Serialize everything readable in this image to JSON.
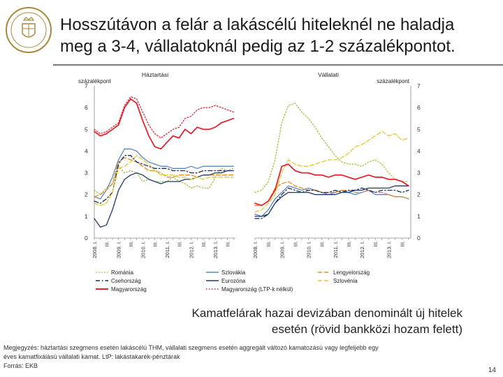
{
  "title_line1": "Hosszútávon a felár a lakáscélú hiteleknél ne haladja",
  "title_line2": "meg a 3-4, vállalatoknál pedig az 1-2 százalékpontot.",
  "caption_line1": "Kamatfelárak hazai devizában denominált új hitelek",
  "caption_line2": "esetén (rövid bankközi hozam felett)",
  "notes": {
    "line1": "Megjegyzés: háztartási szegmens esetén lakáscélú THM, vállalati szegmens esetén aggregált változó kamatozású vagy legfeljebb egy",
    "line2": "éves kamatfixálású vállalati kamat. LtP: lakástakarék-pénztárak",
    "line3": "Forrás: EKB"
  },
  "page_number": "14",
  "colors": {
    "Románia": "#a8bf3a",
    "Szlovákia": "#5b86c2",
    "Lengyelország": "#e58a2b",
    "Csehország": "#1a2e4a",
    "Eurozóna": "#1f3a6e",
    "Szlovénia": "#e5c82a",
    "Magyarország": "#e3232d",
    "Magyarország (LTP-k nélkül)": "#e3232d"
  },
  "chart_data": [
    {
      "type": "line",
      "title": "Háztartási",
      "ylabel": "százalékpont",
      "ylim": [
        0,
        7
      ],
      "yticks": [
        0,
        1,
        2,
        3,
        4,
        5,
        6,
        7
      ],
      "xtick_labels": [
        "2008. I.",
        "III.",
        "2009. I.",
        "III.",
        "2010. I.",
        "III.",
        "2011. I.",
        "III.",
        "2012. I.",
        "III.",
        "2013. I.",
        "III."
      ],
      "xlim": [
        2008.0,
        2013.83
      ],
      "grid": false,
      "series": [
        {
          "name": "Románia",
          "style": "dot",
          "x": [
            2008.0,
            2008.25,
            2008.5,
            2008.75,
            2009.0,
            2009.25,
            2009.5,
            2009.75,
            2010.0,
            2010.25,
            2010.5,
            2010.75,
            2011.0,
            2011.25,
            2011.5,
            2011.75,
            2012.0,
            2012.25,
            2012.5,
            2012.75,
            2013.0,
            2013.25,
            2013.5,
            2013.75
          ],
          "y": [
            2.2,
            2.0,
            2.3,
            2.5,
            3.3,
            3.0,
            3.1,
            3.0,
            2.6,
            2.7,
            2.6,
            2.6,
            2.6,
            2.8,
            2.6,
            2.5,
            2.3,
            2.4,
            2.3,
            2.3,
            2.8,
            3.2,
            3.1,
            3.2
          ]
        },
        {
          "name": "Szlovákia",
          "style": "solid",
          "x": [
            2008.0,
            2008.25,
            2008.5,
            2008.75,
            2009.0,
            2009.25,
            2009.5,
            2009.75,
            2010.0,
            2010.25,
            2010.5,
            2010.75,
            2011.0,
            2011.25,
            2011.5,
            2011.75,
            2012.0,
            2012.25,
            2012.5,
            2012.75,
            2013.0,
            2013.25,
            2013.5,
            2013.75
          ],
          "y": [
            1.9,
            1.8,
            2.2,
            2.8,
            3.6,
            4.1,
            4.1,
            4.0,
            3.7,
            3.5,
            3.4,
            3.3,
            3.3,
            3.2,
            3.2,
            3.2,
            3.3,
            3.2,
            3.3,
            3.3,
            3.3,
            3.3,
            3.3,
            3.3
          ]
        },
        {
          "name": "Lengyelország",
          "style": "dash",
          "x": [
            2008.0,
            2008.25,
            2008.5,
            2008.75,
            2009.0,
            2009.25,
            2009.5,
            2009.75,
            2010.0,
            2010.25,
            2010.5,
            2010.75,
            2011.0,
            2011.25,
            2011.5,
            2011.75,
            2012.0,
            2012.25,
            2012.5,
            2012.75,
            2013.0,
            2013.25,
            2013.5,
            2013.75
          ],
          "y": [
            1.9,
            2.0,
            2.2,
            2.5,
            3.5,
            3.7,
            3.6,
            3.5,
            3.3,
            3.1,
            3.1,
            3.0,
            2.8,
            2.8,
            2.9,
            2.9,
            2.9,
            2.8,
            2.9,
            2.9,
            2.9,
            2.9,
            2.9,
            2.9
          ]
        },
        {
          "name": "Csehország",
          "style": "dashdot",
          "x": [
            2008.0,
            2008.25,
            2008.5,
            2008.75,
            2009.0,
            2009.25,
            2009.5,
            2009.75,
            2010.0,
            2010.25,
            2010.5,
            2010.75,
            2011.0,
            2011.25,
            2011.5,
            2011.75,
            2012.0,
            2012.25,
            2012.5,
            2012.75,
            2013.0,
            2013.25,
            2013.5,
            2013.75
          ],
          "y": [
            1.7,
            1.6,
            1.8,
            2.1,
            3.4,
            3.8,
            3.8,
            3.5,
            3.4,
            3.3,
            3.2,
            3.2,
            3.2,
            3.1,
            3.1,
            3.1,
            3.0,
            3.0,
            3.1,
            3.1,
            3.1,
            3.1,
            3.1,
            3.1
          ]
        },
        {
          "name": "Eurozóna",
          "style": "solid",
          "x": [
            2008.0,
            2008.25,
            2008.5,
            2008.75,
            2009.0,
            2009.25,
            2009.5,
            2009.75,
            2010.0,
            2010.25,
            2010.5,
            2010.75,
            2011.0,
            2011.25,
            2011.5,
            2011.75,
            2012.0,
            2012.25,
            2012.5,
            2012.75,
            2013.0,
            2013.25,
            2013.5,
            2013.75
          ],
          "y": [
            0.9,
            0.5,
            0.6,
            1.3,
            2.2,
            2.7,
            2.9,
            3.0,
            2.9,
            2.7,
            2.6,
            2.5,
            2.6,
            2.6,
            2.6,
            2.7,
            2.7,
            2.8,
            2.9,
            2.9,
            3.0,
            3.0,
            3.1,
            3.1
          ]
        },
        {
          "name": "Szlovénia",
          "style": "dash",
          "x": [
            2008.0,
            2008.25,
            2008.5,
            2008.75,
            2009.0,
            2009.25,
            2009.5,
            2009.75,
            2010.0,
            2010.25,
            2010.5,
            2010.75,
            2011.0,
            2011.25,
            2011.5,
            2011.75,
            2012.0,
            2012.25,
            2012.5,
            2012.75,
            2013.0,
            2013.25,
            2013.5,
            2013.75
          ],
          "y": [
            1.6,
            1.5,
            1.6,
            2.1,
            3.2,
            3.3,
            3.5,
            3.8,
            3.6,
            3.4,
            3.1,
            2.9,
            2.9,
            2.9,
            2.8,
            2.8,
            2.7,
            2.8,
            2.7,
            2.8,
            2.8,
            2.8,
            2.8,
            2.8
          ]
        },
        {
          "name": "Magyarország",
          "style": "solid",
          "x": [
            2008.0,
            2008.25,
            2008.5,
            2008.75,
            2009.0,
            2009.25,
            2009.5,
            2009.75,
            2010.0,
            2010.25,
            2010.5,
            2010.75,
            2011.0,
            2011.25,
            2011.5,
            2011.75,
            2012.0,
            2012.25,
            2012.5,
            2012.75,
            2013.0,
            2013.25,
            2013.5,
            2013.75
          ],
          "y": [
            4.9,
            4.7,
            4.8,
            5.0,
            5.2,
            6.0,
            6.4,
            6.2,
            5.4,
            4.7,
            4.2,
            4.1,
            4.4,
            4.7,
            4.6,
            5.0,
            4.8,
            5.1,
            5.0,
            5.0,
            5.1,
            5.3,
            5.4,
            5.5
          ]
        },
        {
          "name": "Magyarország (LTP-k nélkül)",
          "style": "dot",
          "x": [
            2008.0,
            2008.25,
            2008.5,
            2008.75,
            2009.0,
            2009.25,
            2009.5,
            2009.75,
            2010.0,
            2010.25,
            2010.5,
            2010.75,
            2011.0,
            2011.25,
            2011.5,
            2011.75,
            2012.0,
            2012.25,
            2012.5,
            2012.75,
            2013.0,
            2013.25,
            2013.5,
            2013.75
          ],
          "y": [
            5.0,
            4.8,
            4.9,
            5.1,
            5.3,
            6.1,
            6.5,
            6.4,
            5.8,
            5.2,
            4.8,
            4.6,
            4.8,
            5.0,
            5.1,
            5.5,
            5.6,
            5.9,
            6.0,
            6.0,
            6.1,
            6.0,
            5.9,
            5.8
          ]
        }
      ]
    },
    {
      "type": "line",
      "title": "Vállalati",
      "ylabel": "százalékpont",
      "ylim": [
        0,
        7
      ],
      "yticks": [
        0,
        1,
        2,
        3,
        4,
        5,
        6,
        7
      ],
      "xtick_labels": [
        "2008. I.",
        "III.",
        "2009. I.",
        "III.",
        "2010. I.",
        "III.",
        "2011. I.",
        "III.",
        "2012. I.",
        "III.",
        "2013. I.",
        "III."
      ],
      "xlim": [
        2008.0,
        2013.83
      ],
      "grid": false,
      "series": [
        {
          "name": "Románia",
          "style": "dot",
          "x": [
            2008.0,
            2008.25,
            2008.5,
            2008.75,
            2009.0,
            2009.25,
            2009.5,
            2009.75,
            2010.0,
            2010.25,
            2010.5,
            2010.75,
            2011.0,
            2011.25,
            2011.5,
            2011.75,
            2012.0,
            2012.25,
            2012.5,
            2012.75,
            2013.0,
            2013.25,
            2013.5,
            2013.75
          ],
          "y": [
            2.1,
            2.2,
            2.6,
            3.6,
            5.3,
            6.1,
            6.2,
            5.8,
            5.5,
            5.1,
            4.6,
            4.2,
            3.8,
            3.5,
            3.4,
            3.4,
            3.3,
            3.5,
            3.6,
            3.4,
            3.0,
            2.7,
            2.6,
            2.6
          ]
        },
        {
          "name": "Szlovákia",
          "style": "solid",
          "x": [
            2008.0,
            2008.25,
            2008.5,
            2008.75,
            2009.0,
            2009.25,
            2009.5,
            2009.75,
            2010.0,
            2010.25,
            2010.5,
            2010.75,
            2011.0,
            2011.25,
            2011.5,
            2011.75,
            2012.0,
            2012.25,
            2012.5,
            2012.75,
            2013.0,
            2013.25,
            2013.5,
            2013.75
          ],
          "y": [
            1.1,
            1.0,
            1.3,
            1.8,
            2.1,
            2.4,
            2.3,
            2.2,
            2.3,
            2.2,
            2.1,
            2.0,
            2.1,
            2.2,
            2.1,
            2.0,
            2.1,
            2.2,
            2.0,
            2.0,
            2.0,
            1.9,
            1.9,
            1.8
          ]
        },
        {
          "name": "Lengyelország",
          "style": "dash",
          "x": [
            2008.0,
            2008.25,
            2008.5,
            2008.75,
            2009.0,
            2009.25,
            2009.5,
            2009.75,
            2010.0,
            2010.25,
            2010.5,
            2010.75,
            2011.0,
            2011.25,
            2011.5,
            2011.75,
            2012.0,
            2012.25,
            2012.5,
            2012.75,
            2013.0,
            2013.25,
            2013.5,
            2013.75
          ],
          "y": [
            1.5,
            1.5,
            1.7,
            2.3,
            2.5,
            2.6,
            2.4,
            2.3,
            2.2,
            2.2,
            2.1,
            2.1,
            2.1,
            2.2,
            2.2,
            2.1,
            2.1,
            2.2,
            2.1,
            2.1,
            2.0,
            1.9,
            1.9,
            1.8
          ]
        },
        {
          "name": "Csehország",
          "style": "dashdot",
          "x": [
            2008.0,
            2008.25,
            2008.5,
            2008.75,
            2009.0,
            2009.25,
            2009.5,
            2009.75,
            2010.0,
            2010.25,
            2010.5,
            2010.75,
            2011.0,
            2011.25,
            2011.5,
            2011.75,
            2012.0,
            2012.25,
            2012.5,
            2012.75,
            2013.0,
            2013.25,
            2013.5,
            2013.75
          ],
          "y": [
            0.9,
            0.9,
            1.1,
            1.6,
            2.0,
            2.3,
            2.2,
            2.1,
            2.2,
            2.2,
            2.1,
            2.1,
            2.2,
            2.1,
            2.2,
            2.2,
            2.3,
            2.2,
            2.1,
            2.2,
            2.2,
            2.2,
            2.1,
            2.2
          ]
        },
        {
          "name": "Eurozóna",
          "style": "solid",
          "x": [
            2008.0,
            2008.25,
            2008.5,
            2008.75,
            2009.0,
            2009.25,
            2009.5,
            2009.75,
            2010.0,
            2010.25,
            2010.5,
            2010.75,
            2011.0,
            2011.25,
            2011.5,
            2011.75,
            2012.0,
            2012.25,
            2012.5,
            2012.75,
            2013.0,
            2013.25,
            2013.5,
            2013.75
          ],
          "y": [
            1.0,
            1.0,
            1.1,
            1.6,
            1.9,
            2.1,
            2.1,
            2.1,
            2.1,
            2.0,
            2.0,
            2.0,
            2.0,
            2.1,
            2.1,
            2.2,
            2.2,
            2.3,
            2.3,
            2.3,
            2.3,
            2.4,
            2.4,
            2.4
          ]
        },
        {
          "name": "Szlovénia",
          "style": "dash",
          "x": [
            2008.0,
            2008.25,
            2008.5,
            2008.75,
            2009.0,
            2009.25,
            2009.5,
            2009.75,
            2010.0,
            2010.25,
            2010.5,
            2010.75,
            2011.0,
            2011.25,
            2011.5,
            2011.75,
            2012.0,
            2012.25,
            2012.5,
            2012.75,
            2013.0,
            2013.25,
            2013.5,
            2013.75
          ],
          "y": [
            1.2,
            1.3,
            1.6,
            2.0,
            3.0,
            3.6,
            3.4,
            3.3,
            3.3,
            3.4,
            3.5,
            3.6,
            3.6,
            3.7,
            3.9,
            4.2,
            4.3,
            4.5,
            4.7,
            4.9,
            4.7,
            4.8,
            4.5,
            4.6
          ]
        },
        {
          "name": "Magyarország",
          "style": "solid",
          "x": [
            2008.0,
            2008.25,
            2008.5,
            2008.75,
            2009.0,
            2009.25,
            2009.5,
            2009.75,
            2010.0,
            2010.25,
            2010.5,
            2010.75,
            2011.0,
            2011.25,
            2011.5,
            2011.75,
            2012.0,
            2012.25,
            2012.5,
            2012.75,
            2013.0,
            2013.25,
            2013.5,
            2013.75
          ],
          "y": [
            1.6,
            1.5,
            1.7,
            2.2,
            3.3,
            3.4,
            3.1,
            3.0,
            3.0,
            2.9,
            2.9,
            2.8,
            2.9,
            2.9,
            2.8,
            2.7,
            2.8,
            2.9,
            2.8,
            2.8,
            2.7,
            2.7,
            2.6,
            2.4
          ]
        }
      ]
    }
  ]
}
